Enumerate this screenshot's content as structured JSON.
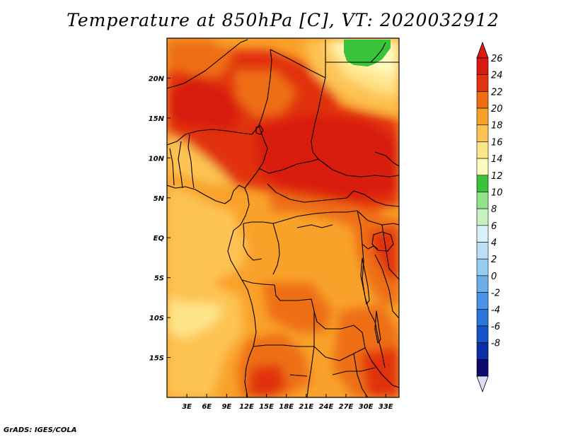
{
  "title": "Temperature at 850hPa [C], VT: 2020032912",
  "credit": "GrADS: IGES/COLA",
  "map": {
    "lon_range": [
      0,
      35
    ],
    "lat_range": [
      -20,
      25
    ],
    "x_ticks": [
      "3E",
      "6E",
      "9E",
      "12E",
      "15E",
      "18E",
      "21E",
      "24E",
      "27E",
      "30E",
      "33E"
    ],
    "x_tick_values": [
      3,
      6,
      9,
      12,
      15,
      18,
      21,
      24,
      27,
      30,
      33
    ],
    "y_ticks": [
      "15S",
      "10S",
      "5S",
      "EQ",
      "5N",
      "10N",
      "15N",
      "20N"
    ],
    "y_tick_values": [
      -15,
      -10,
      -5,
      0,
      5,
      10,
      15,
      20
    ]
  },
  "colorbar": {
    "labels": [
      "-8",
      "-6",
      "-4",
      "-2",
      "0",
      "2",
      "4",
      "6",
      "8",
      "10",
      "12",
      "14",
      "16",
      "18",
      "20",
      "22",
      "24",
      "26"
    ],
    "colors": [
      "#0c0a6e",
      "#0b2ea8",
      "#1653c8",
      "#2a75dc",
      "#4a93e6",
      "#6aaeea",
      "#96cbf2",
      "#bcdff6",
      "#dcf0fa",
      "#c6f0c0",
      "#8ee486",
      "#38c33a",
      "#fffbbe",
      "#fee58a",
      "#fdc352",
      "#f9a22a",
      "#ee6e12",
      "#e13310",
      "#d81a10"
    ],
    "under_color": "#dcdcf8",
    "over_color": "#d81a10"
  }
}
